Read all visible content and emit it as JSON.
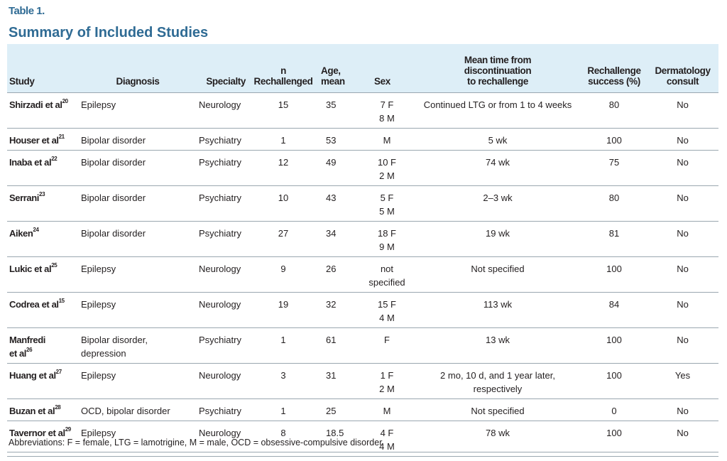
{
  "table_label": "Table 1.",
  "table_title": "Summary of Included Studies",
  "headers": [
    "Study",
    "Diagnosis",
    "Specialty",
    "n Rechallenged",
    "Age,\nmean",
    "Sex",
    "Mean time from\ndiscontinuation\nto rechallenge",
    "Rechallenge\nsuccess (%)",
    "Dermatology\nconsult"
  ],
  "rows": [
    {
      "study": "Shirzadi et al",
      "ref": "20",
      "diagnosis": "Epilepsy",
      "specialty": "Neurology",
      "n": "15",
      "age": "35",
      "sex": "7 F\n8 M",
      "time": "Continued LTG or from 1 to 4 weeks",
      "success": "80",
      "derm": "No"
    },
    {
      "study": "Houser et al",
      "ref": "21",
      "diagnosis": "Bipolar disorder",
      "specialty": "Psychiatry",
      "n": "1",
      "age": "53",
      "sex": "M",
      "time": "5 wk",
      "success": "100",
      "derm": "No"
    },
    {
      "study": "Inaba et al",
      "ref": "22",
      "diagnosis": "Bipolar disorder",
      "specialty": "Psychiatry",
      "n": "12",
      "age": "49",
      "sex": "10 F\n2 M",
      "time": "74 wk",
      "success": "75",
      "derm": "No"
    },
    {
      "study": "Serrani",
      "ref": "23",
      "diagnosis": "Bipolar disorder",
      "specialty": "Psychiatry",
      "n": "10",
      "age": "43",
      "sex": "5 F\n5 M",
      "time": "2–3 wk",
      "success": "80",
      "derm": "No"
    },
    {
      "study": "Aiken",
      "ref": "24",
      "diagnosis": "Bipolar disorder",
      "specialty": "Psychiatry",
      "n": "27",
      "age": "34",
      "sex": "18 F\n9 M",
      "time": "19 wk",
      "success": "81",
      "derm": "No"
    },
    {
      "study": "Lukic et al",
      "ref": "25",
      "diagnosis": "Epilepsy",
      "specialty": "Neurology",
      "n": "9",
      "age": "26",
      "sex": "not\nspecified",
      "time": "Not specified",
      "success": "100",
      "derm": "No"
    },
    {
      "study": "Codrea et al",
      "ref": "15",
      "diagnosis": "Epilepsy",
      "specialty": "Neurology",
      "n": "19",
      "age": "32",
      "sex": "15 F\n4 M",
      "time": "113 wk",
      "success": "84",
      "derm": "No"
    },
    {
      "study": "Manfredi\net al",
      "ref": "26",
      "diagnosis": "Bipolar disorder,\ndepression",
      "specialty": "Psychiatry",
      "n": "1",
      "age": "61",
      "sex": "F",
      "time": "13 wk",
      "success": "100",
      "derm": "No"
    },
    {
      "study": "Huang et al",
      "ref": "27",
      "diagnosis": "Epilepsy",
      "specialty": "Neurology",
      "n": "3",
      "age": "31",
      "sex": "1 F\n2 M",
      "time": "2 mo, 10 d, and 1 year later,\nrespectively",
      "success": "100",
      "derm": "Yes"
    },
    {
      "study": "Buzan et al",
      "ref": "28",
      "diagnosis": "OCD, bipolar disorder",
      "specialty": "Psychiatry",
      "n": "1",
      "age": "25",
      "sex": "M",
      "time": "Not specified",
      "success": "0",
      "derm": "No"
    },
    {
      "study": "Tavernor et al",
      "ref": "29",
      "diagnosis": "Epilepsy",
      "specialty": "Neurology",
      "n": "8",
      "age": "18.5",
      "sex": "4 F\n4 M",
      "time": "78 wk",
      "success": "100",
      "derm": "No"
    }
  ],
  "footnote": "Abbreviations: F = female, LTG = lamotrigine, M = male, OCD = obsessive-compulsive disorder.",
  "colors": {
    "title": "#2f6b94",
    "header_bg": "#ddeef7",
    "rule": "#9aa7b0"
  }
}
